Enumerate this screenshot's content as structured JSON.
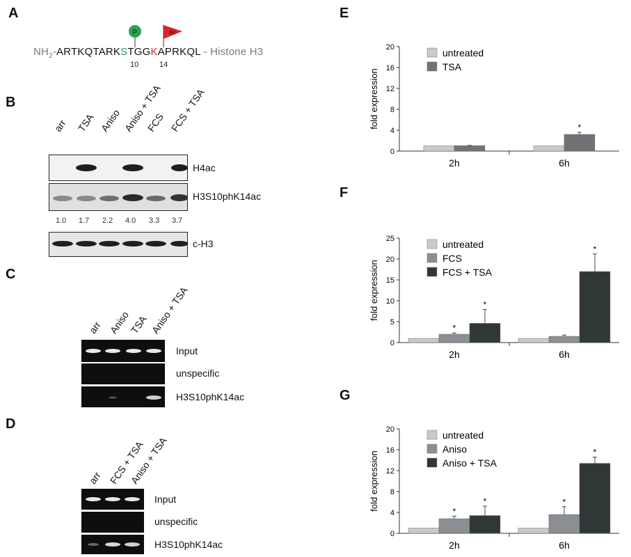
{
  "panel_letters": {
    "A": "A",
    "B": "B",
    "C": "C",
    "D": "D",
    "E": "E",
    "F": "F",
    "G": "G"
  },
  "sequence": {
    "nh2_prefix": "NH",
    "nh2_sub": "2",
    "dash": "-",
    "before_s": "ARTKQTARK",
    "s": "S",
    "between": "TGG",
    "k": "K",
    "after_k": "APRKQL",
    "suffix": " - Histone H3",
    "pos_s": "10",
    "pos_k": "14",
    "p_mark": "P",
    "ac_mark": "Ac",
    "colors": {
      "phospho": "#2aa05a",
      "acetyl": "#d8262b"
    }
  },
  "panel_b": {
    "lanes": [
      "arr",
      "TSA",
      "Aniso",
      "Aniso + TSA",
      "FCS",
      "FCS + TSA"
    ],
    "blots": [
      "H4ac",
      "H3S10phK14ac",
      "c-H3"
    ],
    "quant": [
      "1.0",
      "1.7",
      "2.2",
      "4.0",
      "3.3",
      "3.7"
    ]
  },
  "panel_c": {
    "lanes": [
      "arr",
      "Aniso",
      "TSA",
      "Aniso + TSA"
    ],
    "gels": [
      "Input",
      "unspecific",
      "H3S10phK14ac"
    ]
  },
  "panel_d": {
    "lanes": [
      "arr",
      "FCS + TSA",
      "Aniso + TSA"
    ],
    "gels": [
      "Input",
      "unspecific",
      "H3S10phK14ac"
    ]
  },
  "chart_data": [
    {
      "panel": "E",
      "type": "bar",
      "categories": [
        "2h",
        "6h"
      ],
      "series": [
        {
          "name": "untreated",
          "values": [
            1,
            1
          ],
          "errors": [
            0,
            0
          ],
          "sig": [
            "",
            ""
          ],
          "color": "#c9cacc"
        },
        {
          "name": "TSA",
          "values": [
            1.05,
            3.2
          ],
          "errors": [
            0.05,
            0.4
          ],
          "sig": [
            "",
            "*"
          ],
          "color": "#707276"
        }
      ],
      "xlabel": "",
      "ylabel": "fold expression",
      "ylim": [
        0,
        20
      ],
      "yticks": [
        "0",
        "4",
        "8",
        "12",
        "16",
        "20"
      ],
      "grid": false,
      "legend": "top-left"
    },
    {
      "panel": "F",
      "type": "bar",
      "categories": [
        "2h",
        "6h"
      ],
      "series": [
        {
          "name": "untreated",
          "values": [
            1,
            1
          ],
          "errors": [
            0,
            0
          ],
          "sig": [
            "",
            ""
          ],
          "color": "#c9cacc"
        },
        {
          "name": "FCS",
          "values": [
            2,
            1.5
          ],
          "errors": [
            0.3,
            0.3
          ],
          "sig": [
            "*",
            ""
          ],
          "color": "#8b8e92"
        },
        {
          "name": "FCS + TSA",
          "values": [
            4.6,
            17
          ],
          "errors": [
            3.3,
            4.2
          ],
          "sig": [
            "*",
            "*"
          ],
          "color": "#2f3836"
        }
      ],
      "xlabel": "",
      "ylabel": "fold expression",
      "ylim": [
        0,
        25
      ],
      "yticks": [
        "0",
        "5",
        "10",
        "15",
        "20",
        "25"
      ],
      "grid": false,
      "legend": "top-left"
    },
    {
      "panel": "G",
      "type": "bar",
      "categories": [
        "2h",
        "6h"
      ],
      "series": [
        {
          "name": "untreated",
          "values": [
            1,
            1
          ],
          "errors": [
            0,
            0
          ],
          "sig": [
            "",
            ""
          ],
          "color": "#c9cacc"
        },
        {
          "name": "Aniso",
          "values": [
            2.8,
            3.6
          ],
          "errors": [
            0.5,
            1.5
          ],
          "sig": [
            "*",
            "*"
          ],
          "color": "#8b8e92"
        },
        {
          "name": "Aniso + TSA",
          "values": [
            3.4,
            13.4
          ],
          "errors": [
            1.8,
            1.2
          ],
          "sig": [
            "*",
            "*"
          ],
          "color": "#2f3836"
        }
      ],
      "xlabel": "",
      "ylabel": "fold expression",
      "ylim": [
        0,
        20
      ],
      "yticks": [
        "0",
        "4",
        "8",
        "12",
        "16",
        "20"
      ],
      "grid": false,
      "legend": "top-left"
    }
  ]
}
